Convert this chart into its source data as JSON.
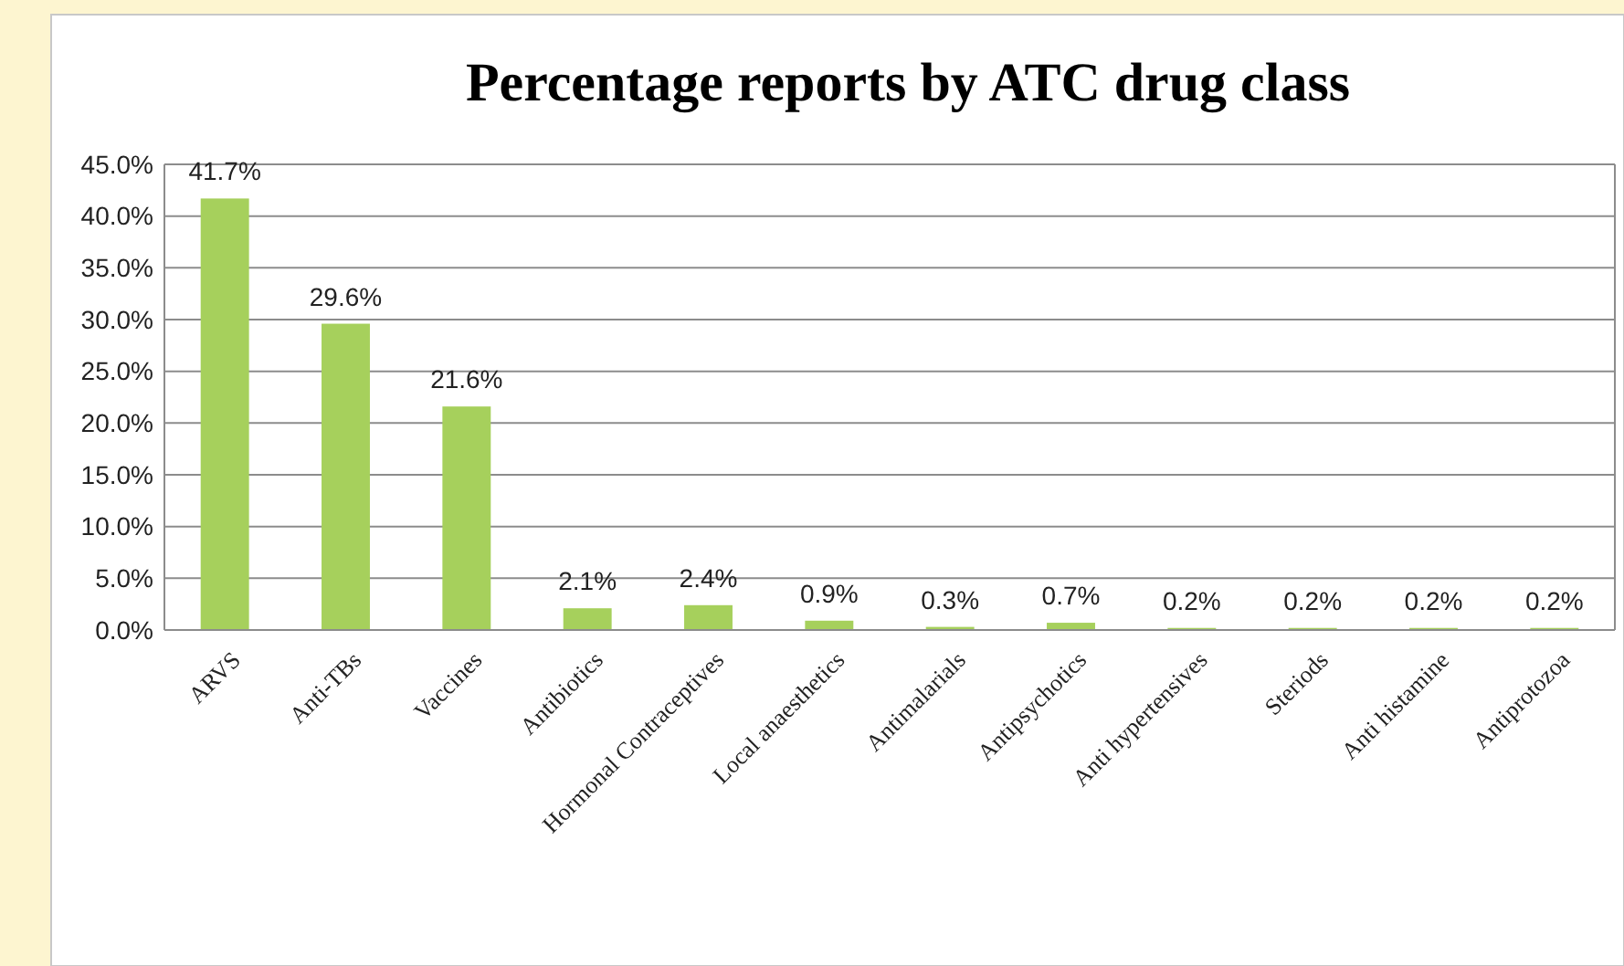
{
  "chart_data": {
    "type": "bar",
    "title": "Percentage reports by ATC drug class",
    "categories": [
      "ARVS",
      "Anti-TBs",
      "Vaccines",
      "Antibiotics",
      "Hormonal Contraceptives",
      "Local anaesthetics",
      "Antimalarials",
      "Antipsychotics",
      "Anti hypertensives",
      "Steriods",
      "Anti histamine",
      "Antiprotozoa"
    ],
    "values": [
      41.7,
      29.6,
      21.6,
      2.1,
      2.4,
      0.9,
      0.3,
      0.7,
      0.2,
      0.2,
      0.2,
      0.2
    ],
    "value_labels": [
      "41.7%",
      "29.6%",
      "21.6%",
      "2.1%",
      "2.4%",
      "0.9%",
      "0.3%",
      "0.7%",
      "0.2%",
      "0.2%",
      "0.2%",
      "0.2%"
    ],
    "color": "#a6d05c",
    "ylim": [
      0,
      45
    ],
    "yticks": [
      {
        "value": 0,
        "label": "0.0%"
      },
      {
        "value": 5,
        "label": "5.0%"
      },
      {
        "value": 10,
        "label": "10.0%"
      },
      {
        "value": 15,
        "label": "15.0%"
      },
      {
        "value": 20,
        "label": "20.0%"
      },
      {
        "value": 25,
        "label": "25.0%"
      },
      {
        "value": 30,
        "label": "30.0%"
      },
      {
        "value": 35,
        "label": "35.0%"
      },
      {
        "value": 40,
        "label": "40.0%"
      },
      {
        "value": 45,
        "label": "45.0%"
      }
    ],
    "grid": "y"
  }
}
